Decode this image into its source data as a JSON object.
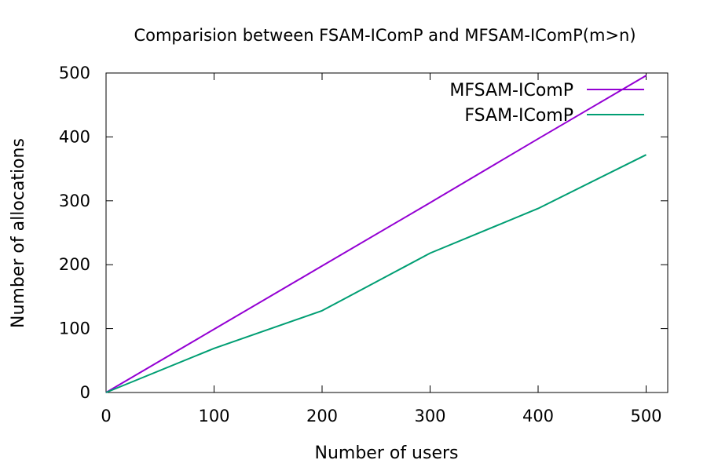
{
  "chart_data": {
    "type": "line",
    "title": "Comparision between FSAM-IComP and MFSAM-IComP(m>n)",
    "xlabel": "Number of users",
    "ylabel": "Number of allocations",
    "xlim": [
      0,
      520
    ],
    "ylim": [
      0,
      500
    ],
    "xticks": [
      0,
      100,
      200,
      300,
      400,
      500
    ],
    "yticks": [
      0,
      100,
      200,
      300,
      400,
      500
    ],
    "grid": false,
    "legend_position": "top-right",
    "series": [
      {
        "name": "MFSAM-IComP",
        "color": "#9400d3",
        "x": [
          0,
          100,
          200,
          300,
          400,
          500
        ],
        "y": [
          0,
          99,
          198,
          297,
          397,
          496
        ]
      },
      {
        "name": "FSAM-IComP",
        "color": "#009e73",
        "x": [
          0,
          100,
          200,
          300,
          400,
          500
        ],
        "y": [
          0,
          69,
          128,
          218,
          288,
          372
        ]
      }
    ]
  }
}
